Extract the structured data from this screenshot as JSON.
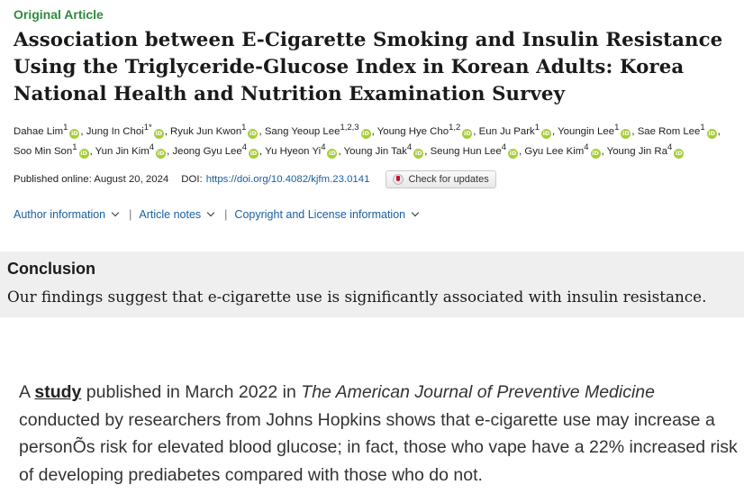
{
  "article": {
    "type": "Original Article",
    "title": "Association between E-Cigarette Smoking and Insulin Resistance Using the Triglyceride-Glucose Index in Korean Adults: Korea National Health and Nutrition Examination Survey",
    "authors": [
      {
        "name": "Dahae Lim",
        "sup": "1"
      },
      {
        "name": "Jung In Choi",
        "sup": "1*"
      },
      {
        "name": "Ryuk Jun Kwon",
        "sup": "1"
      },
      {
        "name": "Sang Yeoup Lee",
        "sup": "1,2,3"
      },
      {
        "name": "Young Hye Cho",
        "sup": "1,2"
      },
      {
        "name": "Eun Ju Park",
        "sup": "1"
      },
      {
        "name": "Youngin Lee",
        "sup": "1"
      },
      {
        "name": "Sae Rom Lee",
        "sup": "1"
      },
      {
        "name": "Soo Min Son",
        "sup": "1"
      },
      {
        "name": "Yun Jin Kim",
        "sup": "4"
      },
      {
        "name": "Jeong Gyu Lee",
        "sup": "4"
      },
      {
        "name": "Yu Hyeon Yi",
        "sup": "4"
      },
      {
        "name": "Young Jin Tak",
        "sup": "4"
      },
      {
        "name": "Seung Hun Lee",
        "sup": "4"
      },
      {
        "name": "Gyu Lee Kim",
        "sup": "4"
      },
      {
        "name": "Young Jin Ra",
        "sup": "4"
      }
    ],
    "orcid_label": "iD",
    "published": "Published online: August 20, 2024",
    "doi_label": "DOI:",
    "doi_link": "https://doi.org/10.4082/kjfm.23.0141",
    "check_updates": "Check for updates",
    "info_links": [
      "Author information",
      "Article notes",
      "Copyright and License information"
    ],
    "separator": "|"
  },
  "conclusion": {
    "heading": "Conclusion",
    "text": "Our findings suggest that e-cigarette use is significantly associated with insulin resistance."
  },
  "body": {
    "lead": "A ",
    "link": "study",
    "mid": " published in March 2022 in ",
    "journal": "The American Journal of Preventive Medicine",
    "rest": " conducted by researchers from Johns Hopkins shows that e-cigarette use may increase a personÕs risk for elevated blood glucose; in fact, those who vape have a 22% increased risk of developing prediabetes compared with those who do not."
  },
  "colors": {
    "accent_green": "#2e8b3e",
    "link_blue": "#1a5fa0",
    "orcid_green": "#a6ce39",
    "box_gray": "#efefef"
  },
  "icons": {
    "orcid": "orcid-icon",
    "check": "check-updates-icon",
    "chevron": "chevron-down-icon"
  }
}
